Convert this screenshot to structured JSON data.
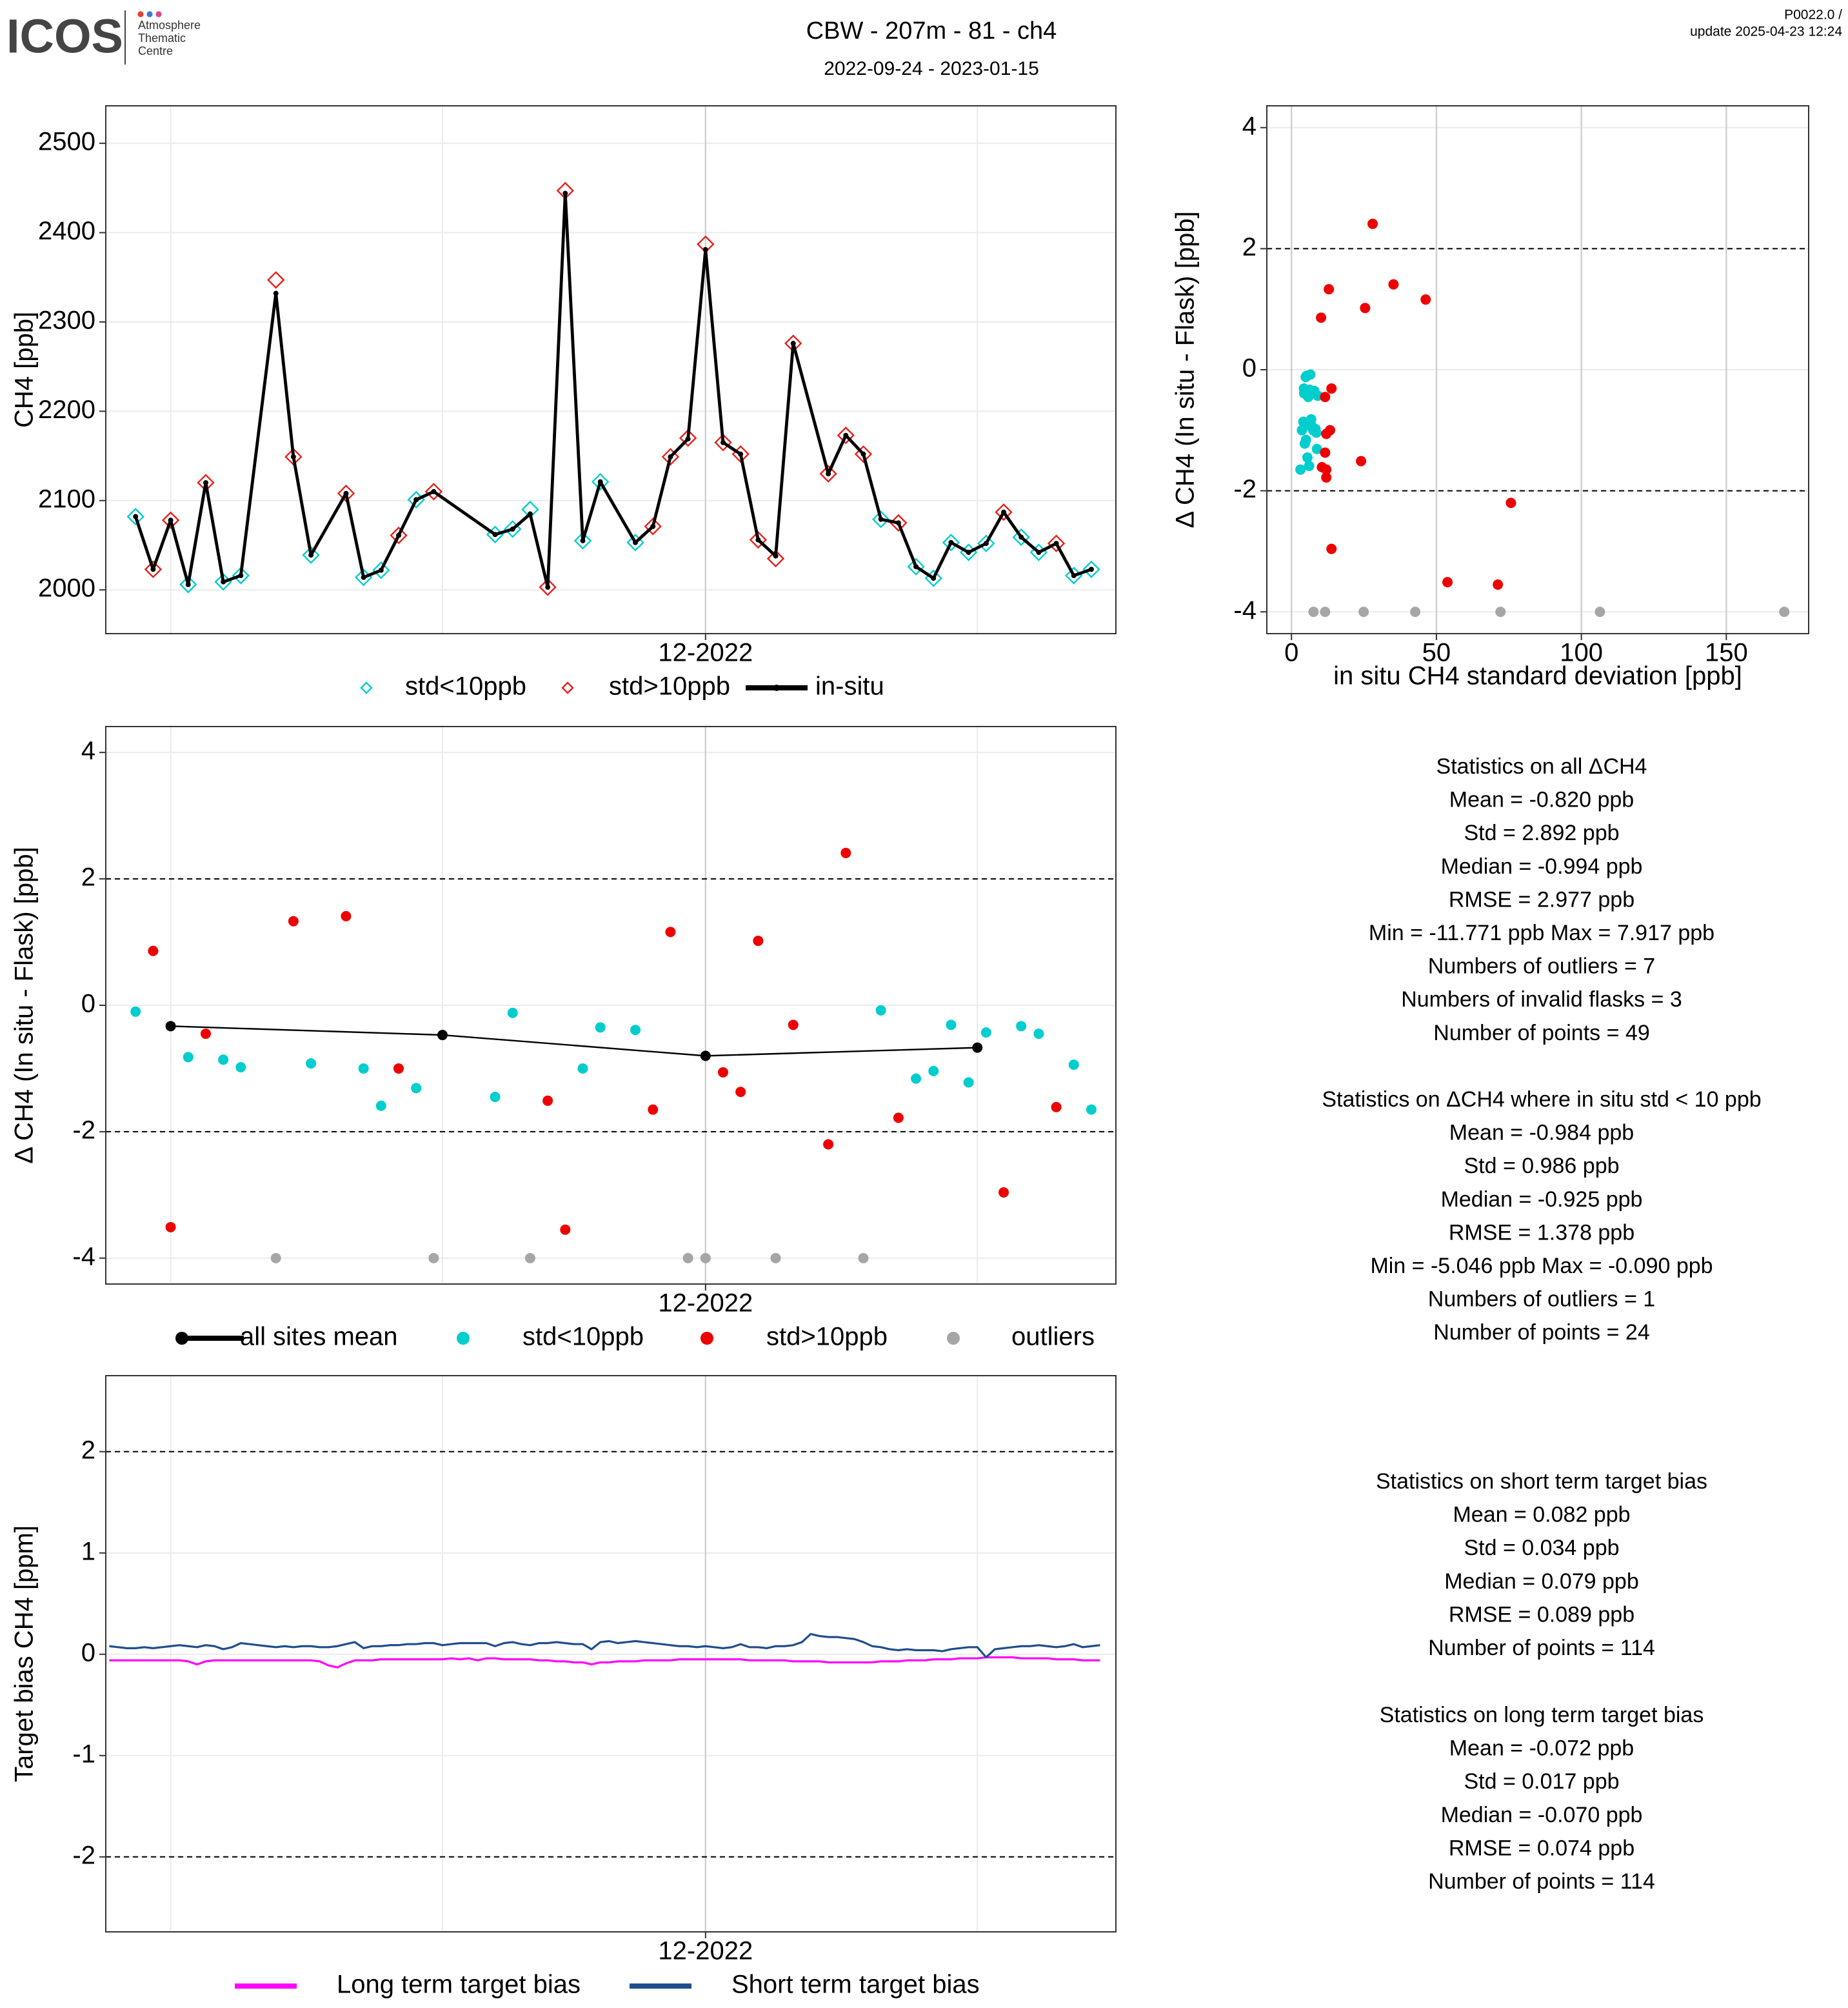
{
  "header": {
    "logo": "ICOS",
    "logo_lines": [
      "Atmosphere",
      "Thematic",
      "Centre"
    ],
    "title": "CBW - 207m - 81 - ch4",
    "subtitle": "2022-09-24 - 2023-01-15",
    "version": "P0022.0 /",
    "update": "update  2025-04-23 12:24"
  },
  "chart_data": [
    {
      "type": "line",
      "ylabel": "CH4 [ppb]",
      "xlim": [
        -0.4,
        114.8
      ],
      "xticks": [
        {
          "value": 68,
          "label": "12-2022"
        }
      ],
      "xminor": [
        7,
        38,
        99
      ],
      "ylim": [
        1951,
        2542
      ],
      "yticks": [
        2000,
        2100,
        2200,
        2300,
        2400,
        2500
      ],
      "grid": true,
      "legend": "bottom",
      "series": [
        {
          "name": "std<10ppb",
          "style": "diamond",
          "color": "#00cdcd",
          "x": [
            3,
            9,
            13,
            15,
            23,
            29,
            31,
            35,
            44,
            46,
            48,
            54,
            56,
            60,
            88,
            92,
            94,
            96,
            98,
            100,
            104,
            106,
            110,
            112
          ],
          "values": [
            2082,
            2006,
            2009,
            2016,
            2039,
            2014,
            2022,
            2101,
            2062,
            2068,
            2090,
            2055,
            2121,
            2053,
            2079,
            2026,
            2013,
            2053,
            2042,
            2052,
            2059,
            2042,
            2016,
            2023
          ]
        },
        {
          "name": "std>10ppb",
          "style": "diamond",
          "color": "#e8201c",
          "x": [
            5,
            7,
            11,
            19,
            21,
            27,
            33,
            37,
            50,
            52,
            62,
            64,
            66,
            68,
            70,
            72,
            74,
            76,
            78,
            82,
            84,
            86,
            90,
            102,
            108
          ],
          "values": [
            2023,
            2078,
            2120,
            2347,
            2149,
            2108,
            2061,
            2110,
            2003,
            2447,
            2071,
            2149,
            2170,
            2387,
            2165,
            2152,
            2056,
            2035,
            2276,
            2130,
            2173,
            2152,
            2075,
            2087,
            2052
          ]
        },
        {
          "name": "in-situ",
          "style": "line-dot",
          "color": "#000000",
          "x": [
            3,
            5,
            7,
            9,
            11,
            13,
            15,
            19,
            21,
            23,
            27,
            29,
            31,
            33,
            35,
            37,
            44,
            46,
            48,
            50,
            52,
            54,
            56,
            60,
            62,
            64,
            66,
            68,
            70,
            72,
            74,
            76,
            78,
            82,
            84,
            86,
            88,
            90,
            92,
            94,
            96,
            98,
            100,
            102,
            104,
            106,
            108,
            110,
            112
          ],
          "values": [
            2082,
            2023,
            2078,
            2006,
            2120,
            2009,
            2016,
            2332,
            2149,
            2039,
            2108,
            2014,
            2022,
            2061,
            2101,
            2110,
            2062,
            2068,
            2085,
            2003,
            2444,
            2055,
            2121,
            2053,
            2071,
            2149,
            2169,
            2381,
            2165,
            2152,
            2056,
            2038,
            2276,
            2130,
            2173,
            2152,
            2079,
            2075,
            2026,
            2013,
            2053,
            2042,
            2052,
            2087,
            2059,
            2042,
            2052,
            2016,
            2023
          ]
        }
      ]
    },
    {
      "type": "scatter",
      "ylabel": "Δ CH4 (In situ - Flask) [ppb]",
      "xlim": [
        -0.4,
        114.8
      ],
      "xticks": [
        {
          "value": 68,
          "label": "12-2022"
        }
      ],
      "xminor": [
        7,
        38,
        99
      ],
      "ylim": [
        -4.41,
        4.41
      ],
      "yticks": [
        -4,
        -2,
        0,
        2,
        4
      ],
      "hlines": [
        -2,
        2
      ],
      "grid": true,
      "legend": "bottom",
      "series": [
        {
          "name": "all sites mean",
          "style": "line-dot",
          "color": "#000000",
          "x": [
            7,
            38,
            68,
            99
          ],
          "values": [
            -0.33,
            -0.47,
            -0.8,
            -0.67
          ]
        },
        {
          "name": "std<10ppb",
          "style": "dot",
          "color": "#00cdcd",
          "x": [
            3,
            9,
            13,
            15,
            23,
            29,
            31,
            35,
            44,
            46,
            54,
            56,
            60,
            88,
            92,
            94,
            96,
            98,
            100,
            104,
            106,
            110,
            112
          ],
          "values": [
            -0.1,
            -0.82,
            -0.86,
            -0.98,
            -0.92,
            -1.0,
            -1.59,
            -1.31,
            -1.45,
            -0.12,
            -1.0,
            -0.35,
            -0.39,
            -0.08,
            -1.16,
            -1.04,
            -0.31,
            -1.22,
            -0.43,
            -0.33,
            -0.45,
            -0.94,
            -1.65
          ]
        },
        {
          "name": "std>10ppb",
          "style": "dot",
          "color": "#ee0000",
          "x": [
            5,
            7,
            11,
            21,
            27,
            33,
            50,
            52,
            62,
            64,
            70,
            72,
            74,
            78,
            82,
            84,
            90,
            102,
            108
          ],
          "values": [
            0.86,
            -3.51,
            -0.45,
            1.33,
            1.41,
            -1.0,
            -1.51,
            -3.55,
            -1.65,
            1.16,
            -1.06,
            -1.37,
            1.02,
            -0.31,
            -2.2,
            2.41,
            -1.78,
            -2.96,
            -1.61
          ]
        },
        {
          "name": "outliers",
          "style": "dot",
          "color": "#a6a6a6",
          "x": [
            19,
            37,
            48,
            66,
            68,
            76,
            86
          ],
          "values": [
            -4,
            -4,
            -4,
            -4,
            -4,
            -4,
            -4
          ]
        }
      ]
    },
    {
      "type": "line",
      "ylabel": "Target bias CH4 [ppm]",
      "xlim": [
        -0.4,
        114.8
      ],
      "xticks": [
        {
          "value": 68,
          "label": "12-2022"
        }
      ],
      "xminor": [
        7,
        38,
        99
      ],
      "ylim": [
        -2.74,
        2.75
      ],
      "yticks": [
        -2,
        -1,
        0,
        1,
        2
      ],
      "hlines": [
        -2,
        2
      ],
      "grid": true,
      "legend": "bottom",
      "x": [
        0,
        1,
        2,
        3,
        4,
        5,
        6,
        7,
        8,
        9,
        10,
        11,
        12,
        13,
        14,
        15,
        16,
        17,
        18,
        19,
        20,
        21,
        22,
        23,
        24,
        25,
        26,
        27,
        28,
        29,
        30,
        31,
        32,
        33,
        34,
        35,
        36,
        37,
        38,
        39,
        40,
        41,
        42,
        43,
        44,
        45,
        46,
        47,
        48,
        49,
        50,
        51,
        52,
        53,
        54,
        55,
        56,
        57,
        58,
        59,
        60,
        61,
        62,
        63,
        64,
        65,
        66,
        67,
        68,
        69,
        70,
        71,
        72,
        73,
        74,
        75,
        76,
        77,
        78,
        79,
        80,
        81,
        82,
        83,
        84,
        85,
        86,
        87,
        88,
        89,
        90,
        91,
        92,
        93,
        94,
        95,
        96,
        97,
        98,
        99,
        100,
        101,
        102,
        103,
        104,
        105,
        106,
        107,
        108,
        109,
        110,
        111,
        112,
        113
      ],
      "series": [
        {
          "name": "Long term target bias",
          "style": "line",
          "color": "#ff00ff",
          "values": [
            -0.06,
            -0.06,
            -0.06,
            -0.06,
            -0.06,
            -0.06,
            -0.06,
            -0.06,
            -0.06,
            -0.07,
            -0.1,
            -0.07,
            -0.06,
            -0.06,
            -0.06,
            -0.06,
            -0.06,
            -0.06,
            -0.06,
            -0.06,
            -0.06,
            -0.06,
            -0.06,
            -0.06,
            -0.07,
            -0.11,
            -0.13,
            -0.09,
            -0.06,
            -0.06,
            -0.06,
            -0.05,
            -0.05,
            -0.05,
            -0.05,
            -0.05,
            -0.05,
            -0.05,
            -0.05,
            -0.04,
            -0.05,
            -0.04,
            -0.06,
            -0.04,
            -0.04,
            -0.05,
            -0.05,
            -0.05,
            -0.05,
            -0.06,
            -0.06,
            -0.07,
            -0.07,
            -0.08,
            -0.08,
            -0.1,
            -0.08,
            -0.08,
            -0.07,
            -0.07,
            -0.07,
            -0.06,
            -0.06,
            -0.06,
            -0.06,
            -0.05,
            -0.05,
            -0.05,
            -0.05,
            -0.05,
            -0.05,
            -0.05,
            -0.05,
            -0.06,
            -0.06,
            -0.06,
            -0.06,
            -0.06,
            -0.07,
            -0.07,
            -0.07,
            -0.07,
            -0.08,
            -0.08,
            -0.08,
            -0.08,
            -0.08,
            -0.08,
            -0.07,
            -0.07,
            -0.07,
            -0.06,
            -0.06,
            -0.06,
            -0.05,
            -0.05,
            -0.05,
            -0.04,
            -0.04,
            -0.04,
            -0.03,
            -0.03,
            -0.03,
            -0.03,
            -0.04,
            -0.04,
            -0.04,
            -0.04,
            -0.05,
            -0.05,
            -0.05,
            -0.06,
            -0.06,
            -0.06
          ]
        },
        {
          "name": "Short term target bias",
          "style": "line",
          "color": "#1f4e8c",
          "values": [
            0.08,
            0.07,
            0.06,
            0.06,
            0.07,
            0.06,
            0.07,
            0.08,
            0.09,
            0.08,
            0.07,
            0.09,
            0.08,
            0.05,
            0.07,
            0.11,
            0.1,
            0.09,
            0.08,
            0.07,
            0.08,
            0.07,
            0.08,
            0.08,
            0.07,
            0.07,
            0.08,
            0.1,
            0.12,
            0.06,
            0.08,
            0.08,
            0.09,
            0.09,
            0.1,
            0.1,
            0.11,
            0.11,
            0.09,
            0.1,
            0.11,
            0.11,
            0.11,
            0.11,
            0.08,
            0.11,
            0.12,
            0.1,
            0.09,
            0.11,
            0.11,
            0.12,
            0.11,
            0.1,
            0.1,
            0.05,
            0.12,
            0.13,
            0.11,
            0.12,
            0.13,
            0.12,
            0.11,
            0.1,
            0.09,
            0.08,
            0.08,
            0.07,
            0.08,
            0.07,
            0.06,
            0.07,
            0.1,
            0.07,
            0.07,
            0.06,
            0.08,
            0.08,
            0.09,
            0.12,
            0.2,
            0.18,
            0.17,
            0.17,
            0.16,
            0.15,
            0.12,
            0.08,
            0.07,
            0.05,
            0.04,
            0.05,
            0.04,
            0.04,
            0.04,
            0.03,
            0.05,
            0.06,
            0.07,
            0.07,
            -0.03,
            0.05,
            0.06,
            0.07,
            0.08,
            0.08,
            0.09,
            0.08,
            0.07,
            0.08,
            0.1,
            0.07,
            0.08,
            0.09
          ]
        }
      ]
    },
    {
      "type": "scatter",
      "xlabel": "in situ CH4 standard deviation [ppb]",
      "ylabel": "Δ CH4 (In situ - Flask) [ppb]",
      "xlim": [
        -8.5,
        178.4
      ],
      "xticks": [
        0,
        50,
        100,
        150
      ],
      "ylim": [
        -4.36,
        4.36
      ],
      "yticks": [
        -4,
        -2,
        0,
        2,
        4
      ],
      "hlines": [
        -2,
        2
      ],
      "grid": true,
      "series": [
        {
          "name": "std<10ppb",
          "style": "dot",
          "color": "#00cdcd",
          "x": [
            5.2,
            6.8,
            4.1,
            8.3,
            5.9,
            7.5,
            6.1,
            8.8,
            5.5,
            4.9,
            3.6,
            7.9,
            4.4,
            6.5,
            5.0,
            8.6,
            4.3,
            4.6,
            9.1,
            6.2,
            5.8,
            7.1,
            3.1
          ],
          "values": [
            -0.1,
            -0.82,
            -0.86,
            -0.98,
            -0.92,
            -1.0,
            -1.59,
            -1.31,
            -1.45,
            -0.12,
            -1.0,
            -0.35,
            -0.39,
            -0.08,
            -1.16,
            -1.04,
            -0.31,
            -1.22,
            -0.43,
            -0.33,
            -0.45,
            -0.94,
            -1.65
          ]
        },
        {
          "name": "std>10ppb",
          "style": "dot",
          "color": "#ee0000",
          "x": [
            28.0,
            35.2,
            46.3,
            12.9,
            25.4,
            10.2,
            13.8,
            11.6,
            13.3,
            12.0,
            11.6,
            24.0,
            10.5,
            12.0,
            12.0,
            75.7,
            13.8,
            53.8,
            71.2
          ],
          "values": [
            2.41,
            1.41,
            1.16,
            1.33,
            1.02,
            0.86,
            -0.31,
            -0.45,
            -1.0,
            -1.06,
            -1.37,
            -1.51,
            -1.61,
            -1.65,
            -1.78,
            -2.2,
            -2.96,
            -3.51,
            -3.55
          ]
        },
        {
          "name": "outliers",
          "style": "dot",
          "color": "#a6a6a6",
          "x": [
            7.6,
            11.6,
            24.9,
            42.7,
            72.1,
            106.4,
            170.0
          ],
          "values": [
            -4,
            -4,
            -4,
            -4,
            -4,
            -4,
            -4
          ]
        }
      ]
    }
  ],
  "stats": [
    {
      "title": "Statistics on all ΔCH4",
      "lines": [
        "Mean =  -0.820 ppb",
        "Std =  2.892 ppb",
        "Median =  -0.994 ppb",
        "RMSE =  2.977 ppb",
        "Min =  -11.771 ppb Max =  7.917 ppb",
        "Numbers of outliers =  7",
        "Numbers of invalid flasks =  3",
        "Number of points =  49"
      ]
    },
    {
      "title": "Statistics on ΔCH4 where in situ std < 10 ppb",
      "lines": [
        "Mean =  -0.984 ppb",
        "Std =  0.986 ppb",
        "Median =  -0.925 ppb",
        "RMSE =  1.378 ppb",
        "Min =  -5.046 ppb Max =  -0.090 ppb",
        "Numbers of outliers =  1",
        "Number of points =  24"
      ]
    },
    {
      "title": "Statistics on short term target bias",
      "lines": [
        "Mean =  0.082 ppb",
        "Std =  0.034 ppb",
        "Median =  0.079 ppb",
        "RMSE =  0.089 ppb",
        "Number of points =  114"
      ]
    },
    {
      "title": "Statistics on long term target bias",
      "lines": [
        "Mean =  -0.072 ppb",
        "Std =  0.017 ppb",
        "Median =  -0.070 ppb",
        "RMSE =  0.074 ppb",
        "Number of points =  114"
      ]
    }
  ]
}
